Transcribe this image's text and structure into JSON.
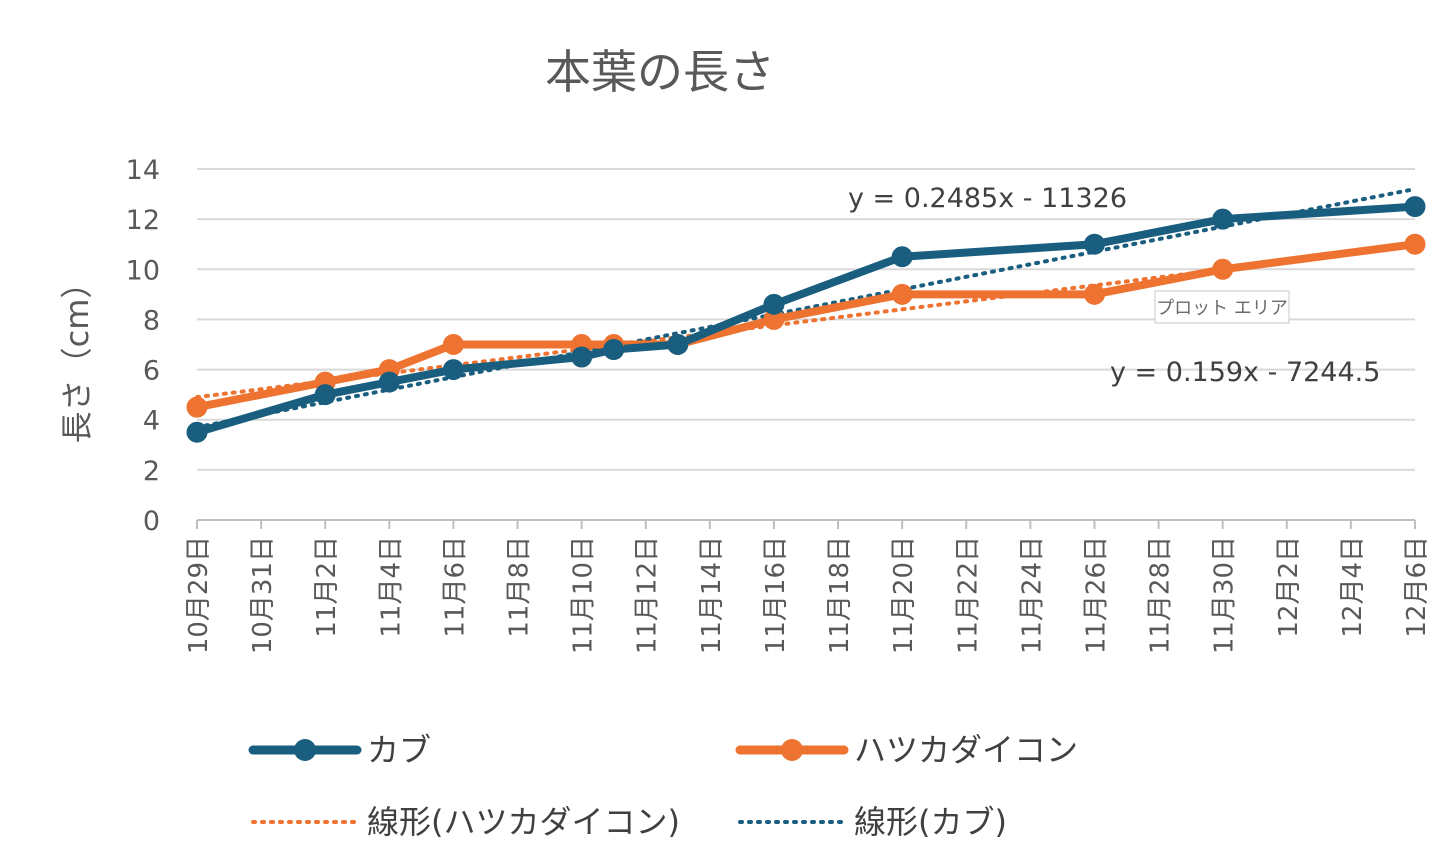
{
  "chart_data": {
    "type": "line",
    "title": "本葉の長さ",
    "ylabel": "長さ（cm）",
    "ylim": [
      0,
      14
    ],
    "yticks": [
      0,
      2,
      4,
      6,
      8,
      10,
      12,
      14
    ],
    "x_tick_labels": [
      "10月29日",
      "10月31日",
      "11月2日",
      "11月4日",
      "11月6日",
      "11月8日",
      "11月10日",
      "11月12日",
      "11月14日",
      "11月16日",
      "11月18日",
      "11月20日",
      "11月22日",
      "11月24日",
      "11月26日",
      "11月28日",
      "11月30日",
      "12月2日",
      "12月4日",
      "12月6日"
    ],
    "grid": true,
    "legend_position": "bottom",
    "series": [
      {
        "name": "カブ",
        "color": "#1a5e7f",
        "points": [
          {
            "x": "10月29日",
            "y": 3.5
          },
          {
            "x": "11月2日",
            "y": 5.0
          },
          {
            "x": "11月4日",
            "y": 5.5
          },
          {
            "x": "11月6日",
            "y": 6.0
          },
          {
            "x": "11月10日",
            "y": 6.5
          },
          {
            "x": "11月11日",
            "y": 6.8
          },
          {
            "x": "11月13日",
            "y": 7.0
          },
          {
            "x": "11月16日",
            "y": 8.6
          },
          {
            "x": "11月20日",
            "y": 10.5
          },
          {
            "x": "11月26日",
            "y": 11.0
          },
          {
            "x": "11月30日",
            "y": 12.0
          },
          {
            "x": "12月6日",
            "y": 12.5
          }
        ]
      },
      {
        "name": "ハツカダイコン",
        "color": "#ee7331",
        "points": [
          {
            "x": "10月29日",
            "y": 4.5
          },
          {
            "x": "11月2日",
            "y": 5.5
          },
          {
            "x": "11月4日",
            "y": 6.0
          },
          {
            "x": "11月6日",
            "y": 7.0
          },
          {
            "x": "11月10日",
            "y": 7.0
          },
          {
            "x": "11月11日",
            "y": 7.0
          },
          {
            "x": "11月13日",
            "y": 7.0
          },
          {
            "x": "11月16日",
            "y": 8.0
          },
          {
            "x": "11月20日",
            "y": 9.0
          },
          {
            "x": "11月26日",
            "y": 9.0
          },
          {
            "x": "11月30日",
            "y": 10.0
          },
          {
            "x": "12月6日",
            "y": 11.0
          }
        ]
      }
    ],
    "trendlines": [
      {
        "name": "線形(ハツカダイコン)",
        "color": "#ee7331",
        "equation": "y = 0.159x - 7244.5",
        "start": {
          "x": "10月29日",
          "y": 4.9
        },
        "end": {
          "x": "12月6日",
          "y": 10.95
        }
      },
      {
        "name": "線形(カブ)",
        "color": "#1a5e7f",
        "equation": "y = 0.2485x - 11326",
        "start": {
          "x": "10月29日",
          "y": 3.7
        },
        "end": {
          "x": "12月6日",
          "y": 13.2
        }
      }
    ],
    "tooltip": "プロット エリア"
  }
}
